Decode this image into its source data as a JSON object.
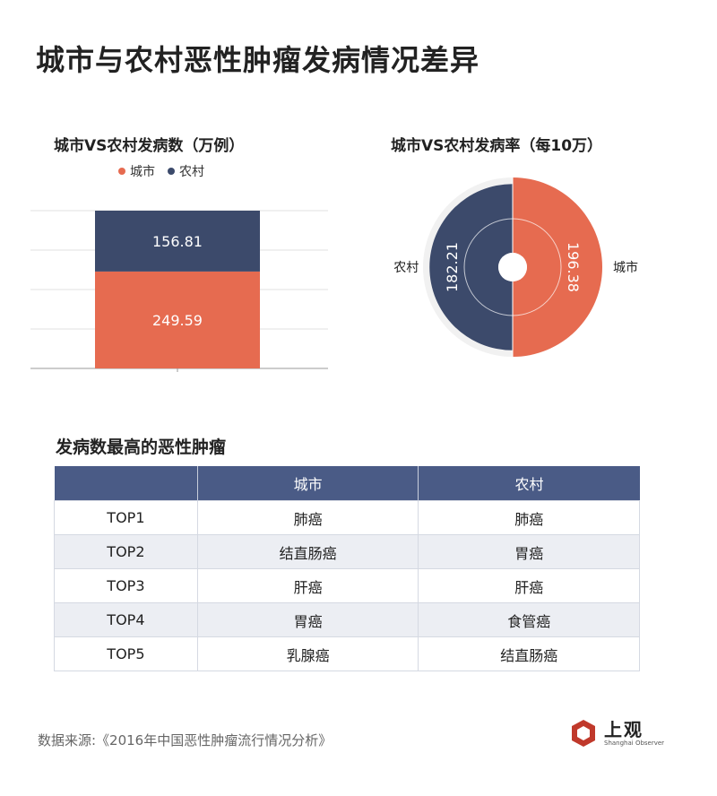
{
  "title": "城市与农村恶性肿瘤发病情况差异",
  "chart_data": [
    {
      "type": "bar",
      "stacked": true,
      "title": "城市VS农村发病数（万例）",
      "categories": [
        ""
      ],
      "series": [
        {
          "name": "城市",
          "values": [
            249.59
          ],
          "color": "#e66b50"
        },
        {
          "name": "农村",
          "values": [
            156.81
          ],
          "color": "#3c4a6b"
        }
      ],
      "ylim": [
        0,
        406.4
      ],
      "legend": "top",
      "grid": true
    },
    {
      "type": "pie",
      "style": "nightingale-rose",
      "title": "城市VS农村发病率（每10万）",
      "series": [
        {
          "name": "城市",
          "value": 196.38,
          "label": "196.38",
          "color": "#e66b50"
        },
        {
          "name": "农村",
          "value": 182.21,
          "label": "182.21",
          "color": "#3c4a6b"
        }
      ]
    }
  ],
  "table": {
    "title": "发病数最高的恶性肿瘤",
    "headers": [
      "",
      "城市",
      "农村"
    ],
    "rows": [
      [
        "TOP1",
        "肺癌",
        "肺癌"
      ],
      [
        "TOP2",
        "结直肠癌",
        "胃癌"
      ],
      [
        "TOP3",
        "肝癌",
        "肝癌"
      ],
      [
        "TOP4",
        "胃癌",
        "食管癌"
      ],
      [
        "TOP5",
        "乳腺癌",
        "结直肠癌"
      ]
    ]
  },
  "source": "数据来源:《2016年中国恶性肿瘤流行情况分析》",
  "brand": {
    "cn": "上观",
    "en": "Shanghai Observer",
    "color": "#c0392b"
  }
}
